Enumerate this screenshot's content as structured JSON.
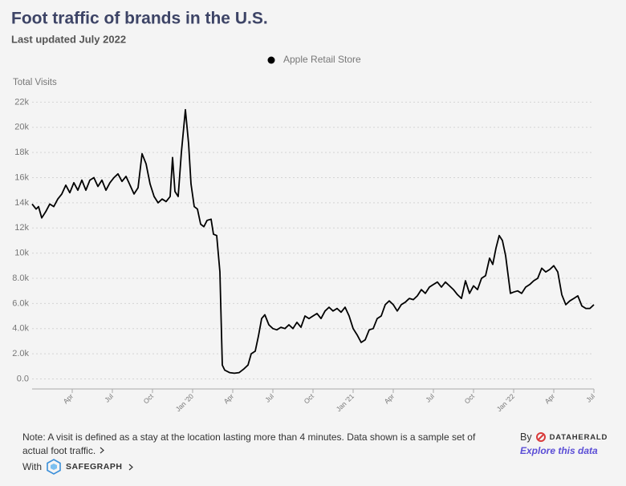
{
  "chart_data": {
    "type": "line",
    "title": "Foot traffic of brands in the U.S.",
    "subtitle": "Last updated July 2022",
    "y_label": "Total Visits",
    "legend": "top",
    "grid": true,
    "x": [
      0,
      0.3,
      0.48,
      0.72,
      1.02,
      1.32,
      1.62,
      1.92,
      2.22,
      2.52,
      2.82,
      3.12,
      3.42,
      3.72,
      4.02,
      4.32,
      4.62,
      4.92,
      5.22,
      5.52,
      5.82,
      6.12,
      6.42,
      6.72,
      7.02,
      7.32,
      7.62,
      7.92,
      8.22,
      8.52,
      8.82,
      9.12,
      9.42,
      9.72,
      10.02,
      10.32,
      10.5,
      10.68,
      10.92,
      11.16,
      11.46,
      11.7,
      11.88,
      12.12,
      12.36,
      12.6,
      12.84,
      13.08,
      13.38,
      13.56,
      13.8,
      14.04,
      14.22,
      14.4,
      14.76,
      15.12,
      15.48,
      15.84,
      16.14,
      16.38,
      16.68,
      16.92,
      17.16,
      17.4,
      17.7,
      18.0,
      18.3,
      18.6,
      18.9,
      19.2,
      19.5,
      19.8,
      20.1,
      20.4,
      20.7,
      21.0,
      21.3,
      21.6,
      21.9,
      22.2,
      22.5,
      22.8,
      23.1,
      23.4,
      23.7,
      24.0,
      24.3,
      24.6,
      24.9,
      25.2,
      25.5,
      25.8,
      26.1,
      26.4,
      26.7,
      27.0,
      27.3,
      27.6,
      27.9,
      28.2,
      28.5,
      28.8,
      29.1,
      29.4,
      29.7,
      30.0,
      30.3,
      30.6,
      30.9,
      31.2,
      31.5,
      31.8,
      32.1,
      32.4,
      32.7,
      33.0,
      33.3,
      33.6,
      33.9,
      34.2,
      34.44,
      34.68,
      34.92,
      35.16,
      35.4,
      35.76,
      36.0,
      36.3,
      36.6,
      36.9,
      37.2,
      37.5,
      37.8,
      38.1,
      38.4,
      38.7,
      39.0,
      39.3,
      39.6,
      39.9,
      40.2,
      40.5,
      40.8,
      41.1,
      41.4,
      41.7,
      42.0
    ],
    "series": [
      {
        "name": "Apple Retail Store",
        "color": "#000000",
        "values": [
          13900,
          13500,
          13700,
          12800,
          13300,
          13900,
          13700,
          14300,
          14700,
          15400,
          14800,
          15600,
          15000,
          15800,
          15000,
          15800,
          16000,
          15300,
          15800,
          15000,
          15600,
          16000,
          16300,
          15700,
          16100,
          15400,
          14700,
          15200,
          17900,
          17100,
          15500,
          14500,
          14000,
          14300,
          14100,
          14500,
          17600,
          14900,
          14500,
          18000,
          21400,
          18700,
          15500,
          13700,
          13500,
          12300,
          12100,
          12600,
          12700,
          11500,
          11400,
          8500,
          1100,
          700,
          500,
          450,
          500,
          800,
          1100,
          2000,
          2200,
          3400,
          4800,
          5100,
          4300,
          4000,
          3900,
          4100,
          4000,
          4300,
          4000,
          4500,
          4100,
          5000,
          4800,
          5000,
          5200,
          4800,
          5400,
          5700,
          5400,
          5600,
          5300,
          5700,
          5000,
          4000,
          3500,
          2900,
          3100,
          3900,
          4000,
          4800,
          5000,
          5900,
          6200,
          5900,
          5400,
          5900,
          6100,
          6400,
          6300,
          6600,
          7100,
          6800,
          7300,
          7500,
          7700,
          7300,
          7700,
          7400,
          7100,
          6700,
          6400,
          7800,
          6800,
          7400,
          7100,
          8000,
          8200,
          9600,
          9100,
          10400,
          11400,
          11000,
          9800,
          6800,
          6900,
          7000,
          6800,
          7300,
          7500,
          7800,
          8000,
          8800,
          8500,
          8700,
          9000,
          8500,
          6700,
          5900,
          6200,
          6400,
          6600,
          5800,
          5600,
          5600,
          5900
        ]
      }
    ],
    "xlim": [
      0,
      42
    ],
    "xticks": [
      {
        "value": 3,
        "label": "Apr"
      },
      {
        "value": 6,
        "label": "Jul"
      },
      {
        "value": 9,
        "label": "Oct"
      },
      {
        "value": 12,
        "label": "Jan '20"
      },
      {
        "value": 15,
        "label": "Apr"
      },
      {
        "value": 18,
        "label": "Jul"
      },
      {
        "value": 21,
        "label": "Oct"
      },
      {
        "value": 24,
        "label": "Jan '21"
      },
      {
        "value": 27,
        "label": "Apr"
      },
      {
        "value": 30,
        "label": "Jul"
      },
      {
        "value": 33,
        "label": "Oct"
      },
      {
        "value": 36,
        "label": "Jan '22"
      },
      {
        "value": 39,
        "label": "Apr"
      },
      {
        "value": 42,
        "label": "Jul"
      }
    ],
    "ylim": [
      -800,
      22600
    ],
    "yticks": [
      {
        "value": 0,
        "label": "0.0"
      },
      {
        "value": 2000,
        "label": "2.0k"
      },
      {
        "value": 4000,
        "label": "4.0k"
      },
      {
        "value": 6000,
        "label": "6.0k"
      },
      {
        "value": 8000,
        "label": "8.0k"
      },
      {
        "value": 10000,
        "label": "10k"
      },
      {
        "value": 12000,
        "label": "12k"
      },
      {
        "value": 14000,
        "label": "14k"
      },
      {
        "value": 16000,
        "label": "16k"
      },
      {
        "value": 18000,
        "label": "18k"
      },
      {
        "value": 20000,
        "label": "20k"
      },
      {
        "value": 22000,
        "label": "22k"
      }
    ]
  },
  "footer": {
    "note": "Note: A visit is defined as a stay at the location lasting more than 4 minutes. Data shown is a sample set of actual foot traffic.",
    "with": "With",
    "partner": "SAFEGRAPH",
    "by": "By",
    "brand": "DATAHERALD",
    "link": "Explore this data"
  }
}
